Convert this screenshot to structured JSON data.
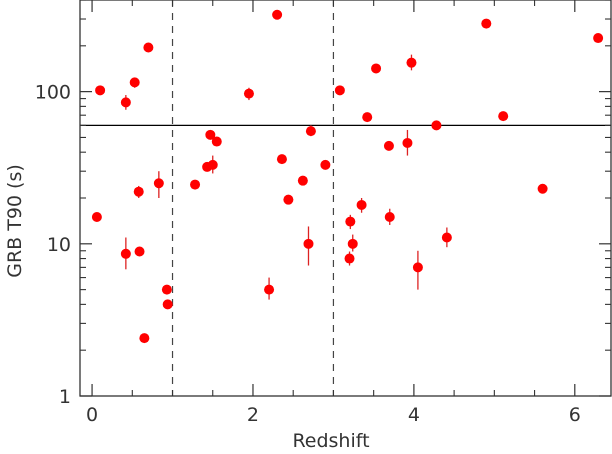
{
  "chart_data": {
    "type": "scatter",
    "xlabel": "Redshift",
    "ylabel": "GRB T90 (s)",
    "xlim": [
      -0.15,
      6.45
    ],
    "ylim": [
      1,
      400
    ],
    "yscale": "log",
    "x_ticks": [
      0,
      2,
      4,
      6
    ],
    "x_tick_labels": [
      "0",
      "2",
      "4",
      "6"
    ],
    "y_ticks": [
      1,
      10,
      100
    ],
    "y_tick_labels": [
      "1",
      "10",
      "100"
    ],
    "vlines": [
      1,
      3
    ],
    "hline": 60,
    "grid": false,
    "colors": {
      "point": "#ff0000",
      "errorbar": "#dd2222",
      "axis": "#333333",
      "ref_line": "#000000"
    },
    "points": [
      {
        "x": 0.06,
        "y": 15
      },
      {
        "x": 0.1,
        "y": 102
      },
      {
        "x": 0.42,
        "y": 85,
        "ylo": 76,
        "yhi": 95
      },
      {
        "x": 0.42,
        "y": 8.6,
        "ylo": 6.8,
        "yhi": 11
      },
      {
        "x": 0.53,
        "y": 115,
        "ylo": 106,
        "yhi": 123
      },
      {
        "x": 0.58,
        "y": 22,
        "ylo": 20,
        "yhi": 24
      },
      {
        "x": 0.59,
        "y": 8.9
      },
      {
        "x": 0.65,
        "y": 2.4,
        "ylo": 2.25,
        "yhi": 2.55
      },
      {
        "x": 0.7,
        "y": 195
      },
      {
        "x": 0.83,
        "y": 25,
        "ylo": 20,
        "yhi": 30
      },
      {
        "x": 0.93,
        "y": 5.0
      },
      {
        "x": 0.94,
        "y": 4.0
      },
      {
        "x": 1.28,
        "y": 24.5
      },
      {
        "x": 1.43,
        "y": 32
      },
      {
        "x": 1.47,
        "y": 52
      },
      {
        "x": 1.5,
        "y": 33,
        "ylo": 29,
        "yhi": 38
      },
      {
        "x": 1.55,
        "y": 47
      },
      {
        "x": 1.95,
        "y": 97,
        "ylo": 88,
        "yhi": 106
      },
      {
        "x": 2.2,
        "y": 5.0,
        "ylo": 4.3,
        "yhi": 6.0
      },
      {
        "x": 2.3,
        "y": 320
      },
      {
        "x": 2.36,
        "y": 36
      },
      {
        "x": 2.44,
        "y": 19.5
      },
      {
        "x": 2.62,
        "y": 26
      },
      {
        "x": 2.69,
        "y": 10,
        "ylo": 7.2,
        "yhi": 13
      },
      {
        "x": 2.72,
        "y": 55,
        "ylo": 51,
        "yhi": 60
      },
      {
        "x": 2.9,
        "y": 33
      },
      {
        "x": 3.08,
        "y": 102
      },
      {
        "x": 3.2,
        "y": 8.0,
        "ylo": 7.2,
        "yhi": 8.9
      },
      {
        "x": 3.21,
        "y": 14,
        "ylo": 12.5,
        "yhi": 15.5
      },
      {
        "x": 3.24,
        "y": 10,
        "ylo": 8.9,
        "yhi": 11.5
      },
      {
        "x": 3.35,
        "y": 18,
        "ylo": 16,
        "yhi": 20
      },
      {
        "x": 3.42,
        "y": 68
      },
      {
        "x": 3.53,
        "y": 142
      },
      {
        "x": 3.69,
        "y": 44,
        "ylo": 41,
        "yhi": 47
      },
      {
        "x": 3.7,
        "y": 15,
        "ylo": 13.3,
        "yhi": 17
      },
      {
        "x": 3.92,
        "y": 46,
        "ylo": 38,
        "yhi": 56
      },
      {
        "x": 3.97,
        "y": 155,
        "ylo": 138,
        "yhi": 175
      },
      {
        "x": 4.05,
        "y": 7.0,
        "ylo": 5.0,
        "yhi": 9.0
      },
      {
        "x": 4.28,
        "y": 60
      },
      {
        "x": 4.41,
        "y": 11,
        "ylo": 9.5,
        "yhi": 12.8
      },
      {
        "x": 4.9,
        "y": 280
      },
      {
        "x": 5.11,
        "y": 69
      },
      {
        "x": 5.6,
        "y": 23
      },
      {
        "x": 6.29,
        "y": 225
      }
    ]
  }
}
